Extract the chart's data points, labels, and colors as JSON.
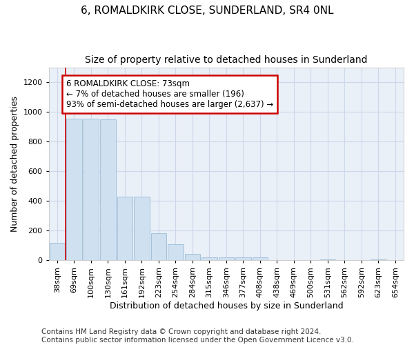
{
  "title": "6, ROMALDKIRK CLOSE, SUNDERLAND, SR4 0NL",
  "subtitle": "Size of property relative to detached houses in Sunderland",
  "xlabel": "Distribution of detached houses by size in Sunderland",
  "ylabel": "Number of detached properties",
  "categories": [
    "38sqm",
    "69sqm",
    "100sqm",
    "130sqm",
    "161sqm",
    "192sqm",
    "223sqm",
    "254sqm",
    "284sqm",
    "315sqm",
    "346sqm",
    "377sqm",
    "408sqm",
    "438sqm",
    "469sqm",
    "500sqm",
    "531sqm",
    "562sqm",
    "592sqm",
    "623sqm",
    "654sqm"
  ],
  "values": [
    120,
    955,
    955,
    950,
    430,
    430,
    185,
    110,
    45,
    20,
    20,
    20,
    18,
    0,
    0,
    0,
    8,
    0,
    0,
    8,
    0
  ],
  "bar_color": "#cfe0f0",
  "bar_edge_color": "#9bbcd8",
  "vline_x": 1,
  "annotation_text": "6 ROMALDKIRK CLOSE: 73sqm\n← 7% of detached houses are smaller (196)\n93% of semi-detached houses are larger (2,637) →",
  "annotation_box_color": "#ffffff",
  "annotation_border_color": "#cc0000",
  "vline_color": "#cc0000",
  "grid_color": "#ccd8ea",
  "bg_color": "#eaf0f8",
  "footer": "Contains HM Land Registry data © Crown copyright and database right 2024.\nContains public sector information licensed under the Open Government Licence v3.0.",
  "ylim": [
    0,
    1300
  ],
  "yticks": [
    0,
    200,
    400,
    600,
    800,
    1000,
    1200
  ],
  "title_fontsize": 11,
  "subtitle_fontsize": 10,
  "axis_label_fontsize": 9,
  "tick_fontsize": 8,
  "footer_fontsize": 7.5,
  "ann_fontsize": 8.5
}
